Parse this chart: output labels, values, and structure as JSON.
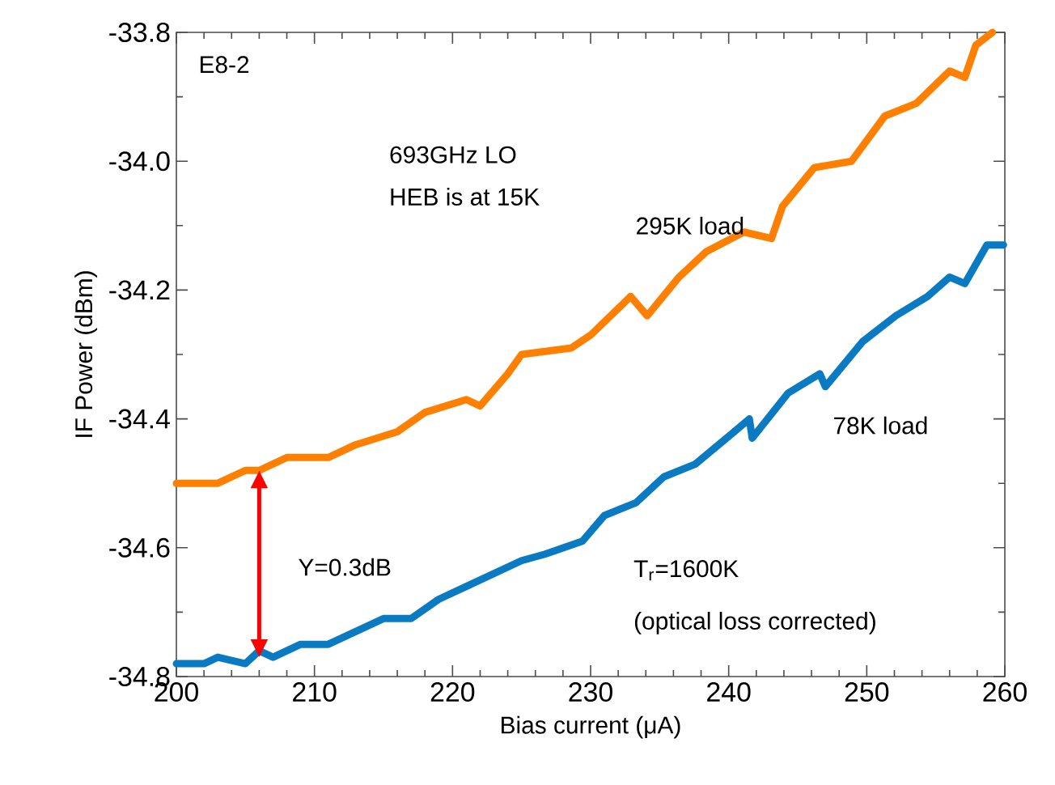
{
  "chart_data": {
    "type": "line",
    "xlabel": "Bias current (μA)",
    "ylabel": "IF Power (dBm)",
    "xlim": [
      200,
      260
    ],
    "xticks": [
      200,
      210,
      220,
      230,
      240,
      250,
      260
    ],
    "ylim": [
      -34.8,
      -33.8
    ],
    "yticks": [
      -34.8,
      -34.6,
      -34.4,
      -34.2,
      {
        "value": -34.0,
        "label": "-34.0"
      },
      -33.8
    ],
    "grid": false,
    "legend": false,
    "marker": "none",
    "line_style": "solid",
    "annotations": [
      "E8-2",
      "693GHz LO",
      "HEB is at 15K",
      "Y=0.3dB",
      "T$_{r}$=1600K",
      "(optical loss corrected)"
    ],
    "series": [
      {
        "name": "295K load",
        "color": "#ff7f00",
        "x": [
          200,
          203,
          205,
          206,
          208,
          211,
          213,
          216,
          218,
          221,
          222,
          224,
          225,
          228.6,
          230,
          232.9,
          234.1,
          236.4,
          238.4,
          241.1,
          243.1,
          243.9,
          246.2,
          248.9,
          251.3,
          253.6,
          256,
          257.1,
          257.9,
          259.1
        ],
        "values": [
          -34.5,
          -34.5,
          -34.48,
          -34.48,
          -34.46,
          -34.46,
          -34.44,
          -34.42,
          -34.39,
          -34.37,
          -34.38,
          -34.33,
          -34.3,
          -34.29,
          -34.27,
          -34.21,
          -34.24,
          -34.18,
          -34.14,
          -34.11,
          -34.12,
          -34.07,
          -34.01,
          -34.0,
          -33.93,
          -33.91,
          -33.86,
          -33.87,
          -33.82,
          -33.8
        ]
      },
      {
        "name": "78K load",
        "color": "#0a7bc2",
        "x": [
          200,
          202,
          203,
          205,
          206,
          207,
          209,
          211,
          213,
          215,
          217,
          219,
          221,
          223,
          225,
          226.7,
          229.4,
          231,
          233.3,
          235.3,
          237.6,
          240.4,
          241.5,
          241.7,
          244.3,
          246.6,
          247,
          249.7,
          252.1,
          254.4,
          256,
          257.1,
          258.7,
          259.9
        ],
        "values": [
          -34.78,
          -34.78,
          -34.77,
          -34.78,
          -34.76,
          -34.77,
          -34.75,
          -34.75,
          -34.73,
          -34.71,
          -34.71,
          -34.68,
          -34.66,
          -34.64,
          -34.62,
          -34.61,
          -34.59,
          -34.55,
          -34.53,
          -34.49,
          -34.47,
          -34.42,
          -34.4,
          -34.43,
          -34.36,
          -34.33,
          -34.35,
          -34.28,
          -34.24,
          -34.21,
          -34.18,
          -34.19,
          -34.13,
          -34.13
        ]
      }
    ]
  }
}
